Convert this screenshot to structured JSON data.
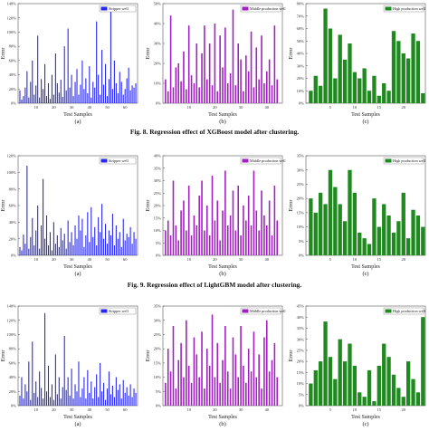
{
  "figures": [
    {
      "caption": "Fig. 8.  Regression effect of XGBoost model after clustering.",
      "sublabels": [
        "(a)",
        "(b)",
        "(c)"
      ]
    },
    {
      "caption": "Fig. 9.  Regression effect of LightGBM model after clustering.",
      "sublabels": [
        "(a)",
        "(b)",
        "(c)"
      ]
    },
    {
      "caption": "",
      "sublabels": [
        "(a)",
        "(b)",
        "(c)"
      ]
    }
  ],
  "colors": {
    "stripper": "#2828ee",
    "middle": "#a020c0",
    "high": "#208a20"
  },
  "chart_data": [
    {
      "type": "bar",
      "figure": 8,
      "panel": "(a)",
      "legend": "Stripper well",
      "color": "#2828ee",
      "ylabel": "Error",
      "xlabel": "Test Samples",
      "ylim": [
        0,
        140
      ],
      "yticks": [
        0,
        20,
        40,
        60,
        80,
        100,
        120,
        140
      ],
      "ytick_labels": [
        "0%",
        "20%",
        "40%",
        "60%",
        "80%",
        "100%",
        "120%",
        "140%"
      ],
      "xticks": [
        10,
        20,
        30,
        40,
        50,
        60
      ],
      "xlim": [
        0,
        67
      ],
      "values": [
        18,
        5,
        10,
        22,
        45,
        8,
        30,
        60,
        12,
        25,
        95,
        8,
        34,
        20,
        55,
        10,
        28,
        6,
        40,
        12,
        70,
        28,
        15,
        33,
        9,
        80,
        18,
        105,
        22,
        40,
        10,
        30,
        48,
        12,
        26,
        60,
        20,
        35,
        14,
        52,
        8,
        30,
        22,
        115,
        40,
        12,
        75,
        26,
        55,
        10,
        34,
        130,
        20,
        60,
        28,
        14,
        44,
        30,
        12,
        20,
        35,
        50,
        18,
        25,
        22,
        28
      ]
    },
    {
      "type": "bar",
      "figure": 8,
      "panel": "(b)",
      "legend": "Middle production well",
      "color": "#a020c0",
      "ylabel": "Error",
      "xlabel": "Test Samples",
      "ylim": [
        0,
        50
      ],
      "yticks": [
        0,
        10,
        20,
        30,
        40,
        50
      ],
      "ytick_labels": [
        "0%",
        "10%",
        "20%",
        "30%",
        "40%",
        "50%"
      ],
      "xticks": [
        10,
        20,
        30,
        40
      ],
      "xlim": [
        0,
        46
      ],
      "values": [
        12,
        6,
        44,
        8,
        18,
        20,
        11,
        26,
        7,
        39,
        14,
        10,
        30,
        8,
        25,
        39,
        12,
        30,
        9,
        40,
        6,
        34,
        18,
        38,
        10,
        15,
        47,
        9,
        30,
        22,
        6,
        24,
        16,
        36,
        8,
        28,
        12,
        34,
        10,
        16,
        22,
        9,
        39,
        12
      ]
    },
    {
      "type": "bar",
      "figure": 8,
      "panel": "(c)",
      "legend": "High production well",
      "color": "#208a20",
      "ylabel": "Error",
      "xlabel": "Test Samples",
      "ylim": [
        0,
        80
      ],
      "yticks": [
        0,
        10,
        20,
        30,
        40,
        50,
        60,
        70,
        80
      ],
      "ytick_labels": [
        "0%",
        "10%",
        "20%",
        "30%",
        "40%",
        "50%",
        "60%",
        "70%",
        "80%"
      ],
      "xticks": [
        5,
        10,
        15,
        20
      ],
      "xlim": [
        0,
        24.5
      ],
      "values": [
        10,
        22,
        14,
        76,
        60,
        20,
        55,
        35,
        48,
        25,
        20,
        28,
        10,
        22,
        6,
        16,
        10,
        58,
        50,
        40,
        36,
        56,
        50,
        8
      ]
    },
    {
      "type": "bar",
      "figure": 9,
      "panel": "(a)",
      "legend": "Stripper well",
      "color": "#2828ee",
      "ylabel": "Error",
      "xlabel": "Test Samples",
      "ylim": [
        0,
        120
      ],
      "yticks": [
        0,
        20,
        40,
        60,
        80,
        100,
        120
      ],
      "ytick_labels": [
        "0%",
        "20%",
        "40%",
        "60%",
        "80%",
        "100%",
        "120%"
      ],
      "xticks": [
        10,
        20,
        30,
        40,
        50,
        60
      ],
      "xlim": [
        0,
        67
      ],
      "values": [
        10,
        6,
        25,
        14,
        108,
        8,
        22,
        45,
        12,
        30,
        60,
        8,
        36,
        92,
        20,
        48,
        12,
        28,
        6,
        40,
        14,
        24,
        10,
        33,
        18,
        26,
        8,
        42,
        16,
        28,
        12,
        36,
        20,
        48,
        30,
        44,
        10,
        24,
        52,
        16,
        58,
        22,
        34,
        12,
        46,
        28,
        62,
        20,
        38,
        14,
        30,
        24,
        50,
        12,
        36,
        20,
        28,
        10,
        44,
        18,
        26,
        22,
        34,
        14,
        28,
        20
      ]
    },
    {
      "type": "bar",
      "figure": 9,
      "panel": "(b)",
      "legend": "Middle production well",
      "color": "#a020c0",
      "ylabel": "Error",
      "xlabel": "Test Samples",
      "ylim": [
        0,
        40
      ],
      "yticks": [
        0,
        5,
        10,
        15,
        20,
        25,
        30,
        35,
        40
      ],
      "ytick_labels": [
        "0%",
        "5%",
        "10%",
        "15%",
        "20%",
        "25%",
        "30%",
        "35%",
        "40%"
      ],
      "xticks": [
        10,
        20,
        30,
        40
      ],
      "xlim": [
        0,
        46
      ],
      "values": [
        10,
        14,
        8,
        30,
        12,
        6,
        18,
        22,
        10,
        28,
        8,
        16,
        12,
        24,
        30,
        10,
        20,
        8,
        32,
        14,
        22,
        6,
        18,
        34,
        12,
        16,
        26,
        10,
        28,
        8,
        20,
        14,
        24,
        12,
        34,
        18,
        10,
        26,
        16,
        12,
        22,
        8,
        28,
        14
      ]
    },
    {
      "type": "bar",
      "figure": 9,
      "panel": "(c)",
      "legend": "High production well",
      "color": "#208a20",
      "ylabel": "Error",
      "xlabel": "Test Samples",
      "ylim": [
        0,
        35
      ],
      "yticks": [
        0,
        5,
        10,
        15,
        20,
        25,
        30,
        35
      ],
      "ytick_labels": [
        "0%",
        "5%",
        "10%",
        "15%",
        "20%",
        "25%",
        "30%",
        "35%"
      ],
      "xticks": [
        5,
        10,
        15,
        20
      ],
      "xlim": [
        0,
        24.5
      ],
      "values": [
        20,
        15,
        22,
        18,
        30,
        24,
        18,
        12,
        30,
        22,
        8,
        6,
        4,
        20,
        10,
        18,
        14,
        8,
        12,
        22,
        6,
        16,
        14,
        10
      ]
    },
    {
      "type": "bar",
      "figure": 10,
      "panel": "(a)",
      "legend": "Stripper well",
      "color": "#2828ee",
      "ylabel": "Error",
      "xlabel": "Test Samples",
      "ylim": [
        0,
        140
      ],
      "yticks": [
        0,
        20,
        40,
        60,
        80,
        100,
        120,
        140
      ],
      "ytick_labels": [
        "0%",
        "20%",
        "40%",
        "60%",
        "80%",
        "100%",
        "120%",
        "140%"
      ],
      "xticks": [
        10,
        20,
        30,
        40,
        50,
        60
      ],
      "xlim": [
        0,
        67
      ],
      "values": [
        14,
        40,
        10,
        30,
        20,
        62,
        8,
        90,
        18,
        34,
        12,
        48,
        25,
        10,
        130,
        20,
        56,
        12,
        30,
        8,
        72,
        16,
        40,
        10,
        26,
        98,
        22,
        40,
        14,
        52,
        10,
        30,
        20,
        62,
        12,
        24,
        40,
        10,
        50,
        18,
        34,
        10,
        26,
        44,
        12,
        60,
        20,
        32,
        8,
        24,
        48,
        16,
        28,
        12,
        40,
        22,
        30,
        10,
        36,
        18,
        26,
        14,
        30,
        12,
        24,
        18
      ]
    },
    {
      "type": "bar",
      "figure": 10,
      "panel": "(b)",
      "legend": "Middle production well",
      "color": "#a020c0",
      "ylabel": "Error",
      "xlabel": "Test Samples",
      "ylim": [
        0,
        35
      ],
      "yticks": [
        0,
        5,
        10,
        15,
        20,
        25,
        30,
        35
      ],
      "ytick_labels": [
        "0%",
        "5%",
        "10%",
        "15%",
        "20%",
        "25%",
        "30%",
        "35%"
      ],
      "xticks": [
        10,
        20,
        30,
        40
      ],
      "xlim": [
        0,
        46
      ],
      "values": [
        8,
        20,
        12,
        28,
        6,
        16,
        22,
        10,
        30,
        14,
        8,
        24,
        18,
        10,
        26,
        6,
        20,
        14,
        32,
        10,
        22,
        8,
        16,
        28,
        12,
        6,
        24,
        18,
        10,
        28,
        14,
        8,
        20,
        12,
        26,
        10,
        18,
        6,
        24,
        30,
        12,
        16,
        22,
        10
      ]
    },
    {
      "type": "bar",
      "figure": 10,
      "panel": "(c)",
      "legend": "High production well",
      "color": "#208a20",
      "ylabel": "Error",
      "xlabel": "Test Samples",
      "ylim": [
        0,
        45
      ],
      "yticks": [
        0,
        5,
        10,
        15,
        20,
        25,
        30,
        35,
        40,
        45
      ],
      "ytick_labels": [
        "0%",
        "5%",
        "10%",
        "15%",
        "20%",
        "25%",
        "30%",
        "35%",
        "40%",
        "45%"
      ],
      "xticks": [
        5,
        10,
        15,
        20
      ],
      "xlim": [
        0,
        24.5
      ],
      "values": [
        10,
        16,
        20,
        38,
        22,
        12,
        30,
        20,
        28,
        18,
        6,
        4,
        16,
        2,
        18,
        28,
        22,
        14,
        8,
        4,
        20,
        12,
        6,
        40
      ]
    }
  ]
}
